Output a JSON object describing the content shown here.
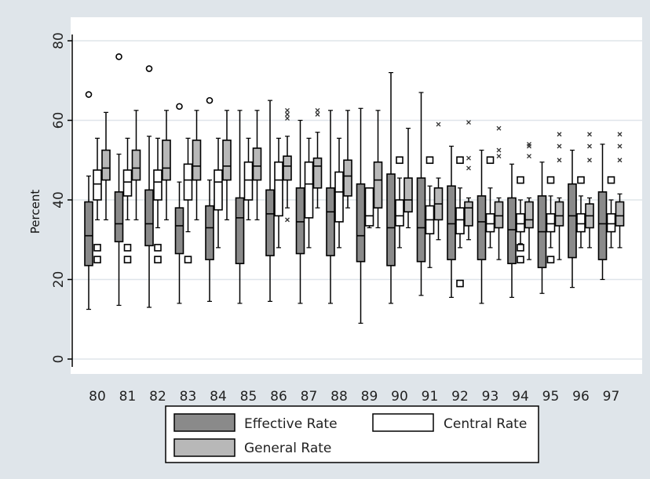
{
  "chart_data": {
    "type": "box",
    "title": "",
    "xlabel": "",
    "ylabel": "Percent",
    "ylim": [
      0,
      80
    ],
    "yticks": [
      0,
      20,
      40,
      60,
      80
    ],
    "grid": true,
    "legend_position": "bottom",
    "categories": [
      "80",
      "81",
      "82",
      "83",
      "84",
      "85",
      "86",
      "87",
      "88",
      "89",
      "90",
      "91",
      "92",
      "93",
      "94",
      "95",
      "96",
      "97"
    ],
    "series": [
      {
        "name": "Effective Rate",
        "color": "#8a8a8a",
        "boxes": [
          {
            "whisker_low": 12.5,
            "q1": 23.5,
            "median": 31,
            "q3": 39.5,
            "whisker_high": 46,
            "outliers": []
          },
          {
            "whisker_low": 13.5,
            "q1": 29.5,
            "median": 34,
            "q3": 42,
            "whisker_high": 51.5,
            "outliers": []
          },
          {
            "whisker_low": 13,
            "q1": 28.5,
            "median": 34,
            "q3": 42.5,
            "whisker_high": 56,
            "outliers": []
          },
          {
            "whisker_low": 14,
            "q1": 26.5,
            "median": 33.5,
            "q3": 38,
            "whisker_high": 44.5,
            "outliers": []
          },
          {
            "whisker_low": 14.5,
            "q1": 25,
            "median": 33,
            "q3": 38.5,
            "whisker_high": 45,
            "outliers": []
          },
          {
            "whisker_low": 14,
            "q1": 24,
            "median": 35.5,
            "q3": 40.5,
            "whisker_high": 62.5,
            "outliers": []
          },
          {
            "whisker_low": 14.5,
            "q1": 26,
            "median": 36.5,
            "q3": 42.5,
            "whisker_high": 65,
            "outliers": []
          },
          {
            "whisker_low": 14,
            "q1": 26.5,
            "median": 34.5,
            "q3": 43,
            "whisker_high": 60,
            "outliers": []
          },
          {
            "whisker_low": 14,
            "q1": 26,
            "median": 37,
            "q3": 43,
            "whisker_high": 62.5,
            "outliers": []
          },
          {
            "whisker_low": 9,
            "q1": 24.5,
            "median": 31,
            "q3": 44,
            "whisker_high": 63,
            "outliers": []
          },
          {
            "whisker_low": 14,
            "q1": 23.5,
            "median": 33,
            "q3": 46.5,
            "whisker_high": 72,
            "outliers": []
          },
          {
            "whisker_low": 16,
            "q1": 24.5,
            "median": 33,
            "q3": 45.5,
            "whisker_high": 67,
            "outliers": []
          },
          {
            "whisker_low": 15.5,
            "q1": 25,
            "median": 34,
            "q3": 43.5,
            "whisker_high": 53.5,
            "outliers": []
          },
          {
            "whisker_low": 14,
            "q1": 25,
            "median": 34.5,
            "q3": 41,
            "whisker_high": 52.5,
            "outliers": []
          },
          {
            "whisker_low": 15.5,
            "q1": 24,
            "median": 32.5,
            "q3": 40.5,
            "whisker_high": 49,
            "outliers": []
          },
          {
            "whisker_low": 16.5,
            "q1": 23,
            "median": 32,
            "q3": 41,
            "whisker_high": 49.5,
            "outliers": []
          },
          {
            "whisker_low": 18,
            "q1": 25.5,
            "median": 36,
            "q3": 44,
            "whisker_high": 52.5,
            "outliers": []
          },
          {
            "whisker_low": 20,
            "q1": 25,
            "median": 34,
            "q3": 42,
            "whisker_high": 54,
            "outliers": []
          }
        ]
      },
      {
        "name": "Central Rate",
        "color": "#ffffff",
        "boxes": [
          {
            "whisker_low": 35,
            "q1": 40,
            "median": 44,
            "q3": 47.5,
            "whisker_high": 55.5,
            "outliers": [
              28,
              25
            ]
          },
          {
            "whisker_low": 35,
            "q1": 41,
            "median": 44.5,
            "q3": 47.5,
            "whisker_high": 55.5,
            "outliers": [
              28,
              25
            ]
          },
          {
            "whisker_low": 33,
            "q1": 40,
            "median": 44.5,
            "q3": 47.5,
            "whisker_high": 55.5,
            "outliers": [
              28,
              25
            ]
          },
          {
            "whisker_low": 32,
            "q1": 40,
            "median": 45,
            "q3": 49,
            "whisker_high": 55.5,
            "outliers": [
              25
            ]
          },
          {
            "whisker_low": 28,
            "q1": 37.5,
            "median": 44.5,
            "q3": 47.5,
            "whisker_high": 55.5,
            "outliers": []
          },
          {
            "whisker_low": 35,
            "q1": 40,
            "median": 45,
            "q3": 49.5,
            "whisker_high": 55.5,
            "outliers": []
          },
          {
            "whisker_low": 28,
            "q1": 36,
            "median": 45,
            "q3": 49.5,
            "whisker_high": 55.5,
            "outliers": []
          },
          {
            "whisker_low": 28,
            "q1": 35.5,
            "median": 44,
            "q3": 49.5,
            "whisker_high": 55.5,
            "outliers": []
          },
          {
            "whisker_low": 28,
            "q1": 34.5,
            "median": 42,
            "q3": 47,
            "whisker_high": 55.5,
            "outliers": []
          },
          {
            "whisker_low": 33,
            "q1": 33.5,
            "median": 36,
            "q3": 43,
            "whisker_high": 43,
            "outliers": []
          },
          {
            "whisker_low": 28,
            "q1": 33.5,
            "median": 36,
            "q3": 40,
            "whisker_high": 45.5,
            "outliers": [
              50
            ]
          },
          {
            "whisker_low": 23,
            "q1": 31.5,
            "median": 35,
            "q3": 38.5,
            "whisker_high": 43.5,
            "outliers": [
              50
            ]
          },
          {
            "whisker_low": 28,
            "q1": 31.5,
            "median": 35,
            "q3": 38,
            "whisker_high": 43,
            "outliers": [
              50,
              19
            ]
          },
          {
            "whisker_low": 28,
            "q1": 32,
            "median": 34,
            "q3": 36.5,
            "whisker_high": 43,
            "outliers": [
              50
            ]
          },
          {
            "whisker_low": 29,
            "q1": 32,
            "median": 34,
            "q3": 36.5,
            "whisker_high": 40,
            "outliers": [
              45,
              28,
              25
            ]
          },
          {
            "whisker_low": 28,
            "q1": 32,
            "median": 34,
            "q3": 36.5,
            "whisker_high": 41,
            "outliers": [
              45,
              25
            ]
          },
          {
            "whisker_low": 28,
            "q1": 32,
            "median": 34,
            "q3": 36.5,
            "whisker_high": 41,
            "outliers": [
              45
            ]
          },
          {
            "whisker_low": 28,
            "q1": 32,
            "median": 34,
            "q3": 36.5,
            "whisker_high": 40,
            "outliers": [
              45
            ]
          }
        ]
      },
      {
        "name": "General Rate",
        "color": "#b8b8b8",
        "boxes": [
          {
            "whisker_low": 35,
            "q1": 45,
            "median": 48,
            "q3": 52.5,
            "whisker_high": 62,
            "outliers": []
          },
          {
            "whisker_low": 35,
            "q1": 45,
            "median": 48,
            "q3": 52.5,
            "whisker_high": 62.5,
            "outliers": []
          },
          {
            "whisker_low": 35,
            "q1": 45,
            "median": 48,
            "q3": 55,
            "whisker_high": 62.5,
            "outliers": []
          },
          {
            "whisker_low": 35,
            "q1": 45,
            "median": 48.5,
            "q3": 55,
            "whisker_high": 62.5,
            "outliers": []
          },
          {
            "whisker_low": 35,
            "q1": 45,
            "median": 48.5,
            "q3": 55,
            "whisker_high": 62.5,
            "outliers": []
          },
          {
            "whisker_low": 35,
            "q1": 45,
            "median": 48.5,
            "q3": 53,
            "whisker_high": 62.5,
            "outliers": []
          },
          {
            "whisker_low": 38,
            "q1": 45,
            "median": 48.5,
            "q3": 51,
            "whisker_high": 56,
            "outliers": [
              62.5,
              61.5,
              60.5,
              35
            ]
          },
          {
            "whisker_low": 38,
            "q1": 43,
            "median": 48.5,
            "q3": 50.5,
            "whisker_high": 57,
            "outliers": [
              62.5,
              61.5
            ]
          },
          {
            "whisker_low": 38,
            "q1": 41,
            "median": 46,
            "q3": 50,
            "whisker_high": 62.5,
            "outliers": []
          },
          {
            "whisker_low": 33,
            "q1": 38,
            "median": 45,
            "q3": 49.5,
            "whisker_high": 62.5,
            "outliers": []
          },
          {
            "whisker_low": 33,
            "q1": 37,
            "median": 40,
            "q3": 45.5,
            "whisker_high": 58,
            "outliers": []
          },
          {
            "whisker_low": 30,
            "q1": 35,
            "median": 39,
            "q3": 43,
            "whisker_high": 45.5,
            "outliers": [
              59
            ]
          },
          {
            "whisker_low": 30,
            "q1": 33.5,
            "median": 38,
            "q3": 39.5,
            "whisker_high": 40.5,
            "outliers": [
              59.5,
              50.5,
              48
            ]
          },
          {
            "whisker_low": 25,
            "q1": 33,
            "median": 36,
            "q3": 39.5,
            "whisker_high": 40.5,
            "outliers": [
              58,
              52.5,
              51
            ]
          },
          {
            "whisker_low": 25,
            "q1": 33,
            "median": 35,
            "q3": 39.5,
            "whisker_high": 40.5,
            "outliers": [
              54,
              53.5,
              51
            ]
          },
          {
            "whisker_low": 25,
            "q1": 33.5,
            "median": 36,
            "q3": 39.5,
            "whisker_high": 40.5,
            "outliers": [
              56.5,
              53.5,
              50
            ]
          },
          {
            "whisker_low": 28,
            "q1": 33,
            "median": 36,
            "q3": 39,
            "whisker_high": 40.5,
            "outliers": [
              56.5,
              53.5,
              50
            ]
          },
          {
            "whisker_low": 28,
            "q1": 33.5,
            "median": 36,
            "q3": 39.5,
            "whisker_high": 41.5,
            "outliers": [
              56.5,
              53.5,
              50
            ]
          }
        ]
      }
    ],
    "outlier_markers": [
      {
        "category": "80",
        "value": 66.5,
        "marker": "circle"
      },
      {
        "category": "81",
        "value": 76,
        "marker": "circle"
      },
      {
        "category": "82",
        "value": 73,
        "marker": "circle"
      },
      {
        "category": "83",
        "value": 63.5,
        "marker": "circle"
      },
      {
        "category": "84",
        "value": 65,
        "marker": "circle"
      }
    ]
  }
}
